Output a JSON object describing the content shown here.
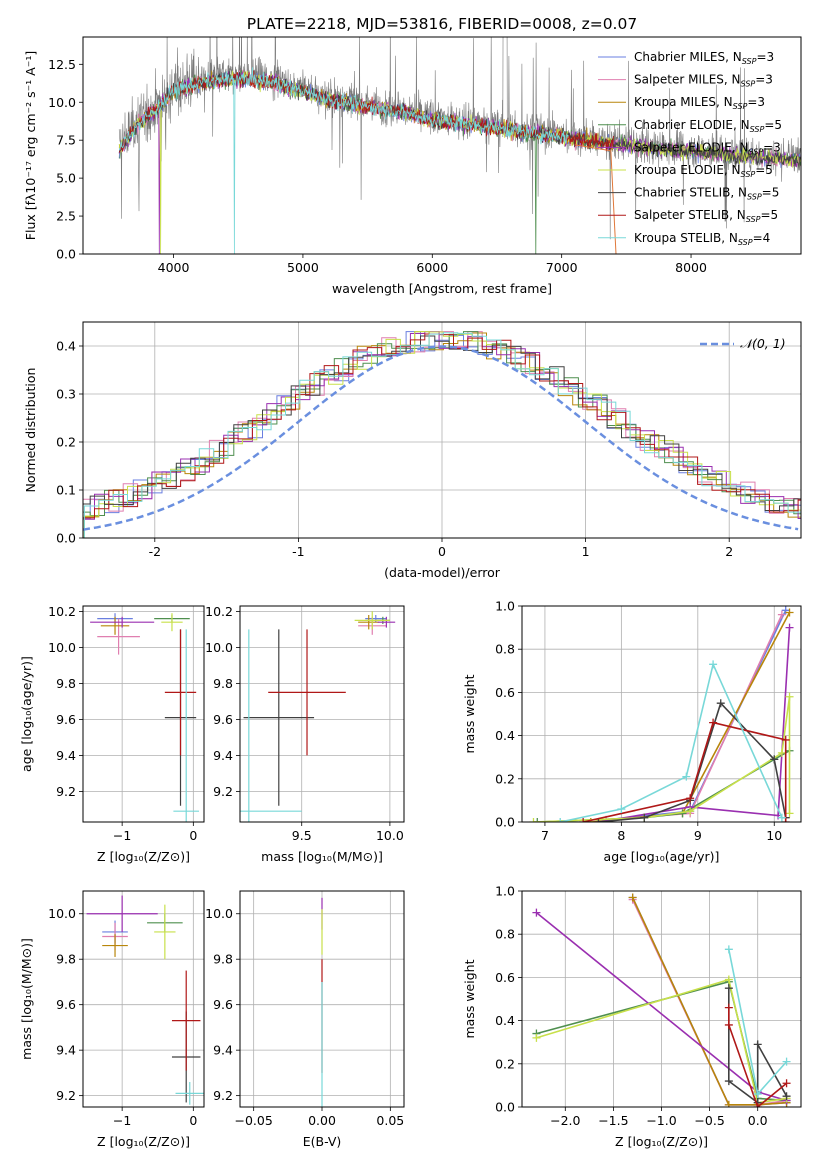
{
  "figure": {
    "title": "PLATE=2218, MJD=53816, FIBERID=0008, z=0.07"
  },
  "models": [
    {
      "name": "Chabrier MILES",
      "nssp": "3",
      "color": "#6a7fe0"
    },
    {
      "name": "Salpeter MILES",
      "nssp": "3",
      "color": "#e07fb0"
    },
    {
      "name": "Kroupa MILES",
      "nssp": "3",
      "color": "#b8860b"
    },
    {
      "name": "Chabrier ELODIE",
      "nssp": "5",
      "color": "#4f8f4f"
    },
    {
      "name": "Salpeter ELODIE",
      "nssp": "3",
      "color": "#9a2fb0"
    },
    {
      "name": "Kroupa ELODIE",
      "nssp": "5",
      "color": "#c8e04a"
    },
    {
      "name": "Chabrier STELIB",
      "nssp": "5",
      "color": "#404040"
    },
    {
      "name": "Salpeter STELIB",
      "nssp": "5",
      "color": "#b01818"
    },
    {
      "name": "Kroupa STELIB",
      "nssp": "4",
      "color": "#78d8d8"
    }
  ],
  "chart_data": [
    {
      "id": "spectrum",
      "type": "line",
      "xlabel": "wavelength [Angstrom, rest frame]",
      "ylabel": "Flux [fλ10⁻¹⁷ erg cm⁻² s⁻¹ A⁻¹]",
      "xlim": [
        3300,
        8850
      ],
      "ylim": [
        0,
        14.3
      ],
      "xticks": [
        4000,
        5000,
        6000,
        7000,
        8000
      ],
      "yticks": [
        0.0,
        2.5,
        5.0,
        7.5,
        10.0,
        12.5
      ],
      "ytick_labels": [
        "0.0",
        "2.5",
        "5.0",
        "7.5",
        "10.0",
        "12.5"
      ],
      "legend": "upper-right",
      "data_range": [
        3580,
        8850
      ],
      "continuum": [
        [
          3580,
          7.0
        ],
        [
          3700,
          8.5
        ],
        [
          3900,
          10.0
        ],
        [
          4000,
          11.0
        ],
        [
          4200,
          11.5
        ],
        [
          4500,
          11.8
        ],
        [
          4800,
          11.5
        ],
        [
          5000,
          10.9
        ],
        [
          5200,
          10.4
        ],
        [
          5500,
          9.9
        ],
        [
          5800,
          9.5
        ],
        [
          6000,
          9.0
        ],
        [
          6300,
          8.7
        ],
        [
          6500,
          8.5
        ],
        [
          6700,
          8.2
        ],
        [
          7000,
          7.9
        ],
        [
          7300,
          7.5
        ],
        [
          7600,
          7.2
        ],
        [
          8000,
          6.9
        ],
        [
          8400,
          6.6
        ],
        [
          8850,
          6.3
        ]
      ]
    },
    {
      "id": "residual-histogram",
      "type": "bar",
      "xlabel": "(data-model)/error",
      "ylabel": "Normed distribution",
      "xlim": [
        -2.5,
        2.5
      ],
      "ylim": [
        0,
        0.45
      ],
      "xticks": [
        -2,
        -1,
        0,
        1,
        2
      ],
      "yticks": [
        0.0,
        0.1,
        0.2,
        0.3,
        0.4
      ],
      "ytick_labels": [
        "0.0",
        "0.1",
        "0.2",
        "0.3",
        "0.4"
      ],
      "legend_label": "𝒩(0, 1)",
      "gaussian": {
        "mu": 0,
        "sigma": 1,
        "color": "#6a8fdf"
      },
      "bin_width": 0.1
    },
    {
      "id": "age-vs-Z",
      "type": "scatter",
      "xlabel": "Z [log₁₀(Z/Z⊙)]",
      "ylabel": "age  [log₁₀(age/yr)]",
      "xlim": [
        -1.55,
        0.15
      ],
      "ylim": [
        9.03,
        10.23
      ],
      "xticks": [
        -1,
        0
      ],
      "xtick_labels": [
        "−1",
        "0"
      ],
      "yticks": [
        9.2,
        9.4,
        9.6,
        9.8,
        10.0,
        10.2
      ],
      "ytick_labels": [
        "9.2",
        "9.4",
        "9.6",
        "9.8",
        "10.0",
        "10.2"
      ],
      "points": [
        {
          "model": 0,
          "x": -1.1,
          "xerr": 0.25,
          "y": 10.16,
          "yerr": 0.03
        },
        {
          "model": 1,
          "x": -1.05,
          "xerr": 0.3,
          "y": 10.06,
          "yerr": 0.1
        },
        {
          "model": 2,
          "x": -1.1,
          "xerr": 0.2,
          "y": 10.12,
          "yerr": 0.05
        },
        {
          "model": 3,
          "x": -0.3,
          "xerr": 0.25,
          "y": 10.16,
          "yerr": 0.02
        },
        {
          "model": 4,
          "x": -1.0,
          "xerr": 0.45,
          "y": 10.14,
          "yerr": 0.03
        },
        {
          "model": 5,
          "x": -0.3,
          "xerr": 0.15,
          "y": 10.14,
          "yerr": 0.05
        },
        {
          "model": 6,
          "x": -0.18,
          "xerr": 0.22,
          "y": 9.61,
          "yerr": 0.49
        },
        {
          "model": 7,
          "x": -0.18,
          "xerr": 0.22,
          "y": 9.75,
          "yerr": 0.35
        },
        {
          "model": 8,
          "x": -0.1,
          "xerr": 0.18,
          "y": 9.09,
          "yerr": 1.01
        }
      ]
    },
    {
      "id": "age-vs-mass",
      "type": "scatter",
      "xlabel": "mass [log₁₀(M/M⊙)]",
      "ylabel": "",
      "xlim": [
        9.15,
        10.08
      ],
      "ylim": [
        9.03,
        10.23
      ],
      "xticks": [
        9.5,
        10.0
      ],
      "xtick_labels": [
        "9.5",
        "10.0"
      ],
      "yticks": [
        9.2,
        9.4,
        9.6,
        9.8,
        10.0,
        10.2
      ],
      "ytick_labels": [
        "9.2",
        "9.4",
        "9.6",
        "9.8",
        "10.0",
        "10.2"
      ],
      "points": [
        {
          "model": 0,
          "x": 9.92,
          "xerr": 0.06,
          "y": 10.16,
          "yerr": 0.02
        },
        {
          "model": 1,
          "x": 9.9,
          "xerr": 0.08,
          "y": 10.12,
          "yerr": 0.05
        },
        {
          "model": 2,
          "x": 9.88,
          "xerr": 0.06,
          "y": 10.14,
          "yerr": 0.04
        },
        {
          "model": 3,
          "x": 9.96,
          "xerr": 0.04,
          "y": 10.15,
          "yerr": 0.02
        },
        {
          "model": 4,
          "x": 9.98,
          "xerr": 0.05,
          "y": 10.14,
          "yerr": 0.03
        },
        {
          "model": 5,
          "x": 9.9,
          "xerr": 0.1,
          "y": 10.15,
          "yerr": 0.05
        },
        {
          "model": 6,
          "x": 9.37,
          "xerr": 0.2,
          "y": 9.61,
          "yerr": 0.49
        },
        {
          "model": 7,
          "x": 9.53,
          "xerr": 0.22,
          "y": 9.75,
          "yerr": 0.35
        },
        {
          "model": 8,
          "x": 9.2,
          "xerr": 0.3,
          "y": 9.09,
          "yerr": 1.01
        }
      ]
    },
    {
      "id": "weight-vs-age",
      "type": "line",
      "xlabel": "age  [log₁₀(age/yr)]",
      "ylabel": "mass weight",
      "xlim": [
        6.7,
        10.35
      ],
      "ylim": [
        0,
        1.0
      ],
      "xticks": [
        7,
        8,
        9,
        10
      ],
      "yticks": [
        0.0,
        0.2,
        0.4,
        0.6,
        0.8,
        1.0
      ],
      "ytick_labels": [
        "0.0",
        "0.2",
        "0.4",
        "0.6",
        "0.8",
        "1.0"
      ],
      "series": [
        {
          "model": 0,
          "x": [
            7.8,
            8.9,
            10.15
          ],
          "y": [
            0.01,
            0.05,
            0.98
          ]
        },
        {
          "model": 1,
          "x": [
            7.8,
            8.9,
            10.1
          ],
          "y": [
            0.01,
            0.04,
            0.96
          ]
        },
        {
          "model": 2,
          "x": [
            7.6,
            8.8,
            10.2
          ],
          "y": [
            0.0,
            0.04,
            0.97
          ]
        },
        {
          "model": 3,
          "x": [
            6.9,
            8.3,
            8.8,
            10.0,
            10.2
          ],
          "y": [
            0.0,
            0.02,
            0.04,
            0.29,
            0.33
          ]
        },
        {
          "model": 4,
          "x": [
            7.7,
            8.9,
            10.05,
            10.2
          ],
          "y": [
            0.0,
            0.07,
            0.03,
            0.9
          ]
        },
        {
          "model": 5,
          "x": [
            6.85,
            8.3,
            8.9,
            10.1,
            10.2,
            10.2
          ],
          "y": [
            0.0,
            0.02,
            0.05,
            0.32,
            0.58,
            0.04
          ]
        },
        {
          "model": 6,
          "x": [
            7.7,
            8.3,
            8.9,
            9.3,
            10.0,
            10.15
          ],
          "y": [
            0.0,
            0.02,
            0.1,
            0.55,
            0.29,
            0.02
          ]
        },
        {
          "model": 7,
          "x": [
            7.5,
            8.9,
            9.2,
            10.15,
            10.15
          ],
          "y": [
            0.0,
            0.11,
            0.46,
            0.38,
            0.0
          ]
        },
        {
          "model": 8,
          "x": [
            7.2,
            8.0,
            8.85,
            9.2,
            10.1
          ],
          "y": [
            0.0,
            0.06,
            0.21,
            0.73,
            0.02
          ]
        }
      ]
    },
    {
      "id": "mass-vs-Z",
      "type": "scatter",
      "xlabel": "Z [log₁₀(Z/Z⊙)]",
      "ylabel": "mass [log₁₀(M/M⊙)]",
      "xlim": [
        -1.55,
        0.15
      ],
      "ylim": [
        9.15,
        10.1
      ],
      "xticks": [
        -1,
        0
      ],
      "xtick_labels": [
        "−1",
        "0"
      ],
      "yticks": [
        9.2,
        9.4,
        9.6,
        9.8,
        10.0
      ],
      "ytick_labels": [
        "9.2",
        "9.4",
        "9.6",
        "9.8",
        "10.0"
      ],
      "points": [
        {
          "model": 0,
          "x": -1.1,
          "xerr": 0.18,
          "y": 9.92,
          "yerr": 0.05
        },
        {
          "model": 1,
          "x": -1.1,
          "xerr": 0.18,
          "y": 9.9,
          "yerr": 0.06
        },
        {
          "model": 2,
          "x": -1.1,
          "xerr": 0.18,
          "y": 9.86,
          "yerr": 0.05
        },
        {
          "model": 3,
          "x": -0.4,
          "xerr": 0.25,
          "y": 9.96,
          "yerr": 0.04
        },
        {
          "model": 4,
          "x": -1.0,
          "xerr": 0.5,
          "y": 10.0,
          "yerr": 0.08
        },
        {
          "model": 5,
          "x": -0.4,
          "xerr": 0.15,
          "y": 9.92,
          "yerr": 0.12
        },
        {
          "model": 6,
          "x": -0.1,
          "xerr": 0.2,
          "y": 9.37,
          "yerr": 0.2
        },
        {
          "model": 7,
          "x": -0.1,
          "xerr": 0.2,
          "y": 9.53,
          "yerr": 0.22
        },
        {
          "model": 8,
          "x": -0.05,
          "xerr": 0.2,
          "y": 9.21,
          "yerr": 0.05
        }
      ]
    },
    {
      "id": "mass-vs-ebv",
      "type": "scatter",
      "xlabel": "E(B-V)",
      "ylabel": "",
      "xlim": [
        -0.06,
        0.06
      ],
      "ylim": [
        9.15,
        10.1
      ],
      "xticks": [
        -0.05,
        0.0,
        0.05
      ],
      "xtick_labels": [
        "−0.05",
        "0.00",
        "0.05"
      ],
      "yticks": [
        9.2,
        9.4,
        9.6,
        9.8,
        10.0
      ],
      "ytick_labels": [
        "9.2",
        "9.4",
        "9.6",
        "9.8",
        "10.0"
      ],
      "points": [
        {
          "model": 4,
          "x": 0.0,
          "xerr": 0.0,
          "y": 10.0,
          "yerr": 0.07
        },
        {
          "model": 5,
          "x": 0.0,
          "xerr": 0.0,
          "y": 9.92,
          "yerr": 0.1
        },
        {
          "model": 7,
          "x": 0.0,
          "xerr": 0.0,
          "y": 9.55,
          "yerr": 0.25
        },
        {
          "model": 8,
          "x": 0.0,
          "xerr": 0.0,
          "y": 9.4,
          "yerr": 0.3
        }
      ]
    },
    {
      "id": "weight-vs-Z",
      "type": "line",
      "xlabel": "Z [log₁₀(Z/Z⊙)]",
      "ylabel": "mass weight",
      "xlim": [
        -2.45,
        0.45
      ],
      "ylim": [
        0,
        1.0
      ],
      "xticks": [
        -2.0,
        -1.5,
        -1.0,
        -0.5,
        0.0
      ],
      "xtick_labels": [
        "−2.0",
        "−1.5",
        "−1.0",
        "−0.5",
        "0.0"
      ],
      "yticks": [
        0.0,
        0.2,
        0.4,
        0.6,
        0.8,
        1.0
      ],
      "ytick_labels": [
        "0.0",
        "0.2",
        "0.4",
        "0.6",
        "0.8",
        "1.0"
      ],
      "series": [
        {
          "model": 0,
          "x": [
            -1.3,
            -0.3,
            0.0,
            0.3
          ],
          "y": [
            0.97,
            0.01,
            0.01,
            0.02
          ]
        },
        {
          "model": 1,
          "x": [
            -1.3,
            -0.3,
            0.0,
            0.3
          ],
          "y": [
            0.96,
            0.01,
            0.01,
            0.03
          ]
        },
        {
          "model": 2,
          "x": [
            -1.3,
            -0.3,
            0.0,
            0.3
          ],
          "y": [
            0.97,
            0.01,
            0.01,
            0.02
          ]
        },
        {
          "model": 3,
          "x": [
            -2.3,
            -0.3,
            0.0,
            0.3
          ],
          "y": [
            0.34,
            0.58,
            0.04,
            0.03
          ]
        },
        {
          "model": 4,
          "x": [
            -2.3,
            0.0,
            0.3
          ],
          "y": [
            0.9,
            0.07,
            0.03
          ]
        },
        {
          "model": 5,
          "x": [
            -2.3,
            -0.3,
            0.0,
            0.3
          ],
          "y": [
            0.32,
            0.59,
            0.02,
            0.04
          ]
        },
        {
          "model": 6,
          "x": [
            -0.3,
            -0.3,
            0.0,
            0.0,
            0.3
          ],
          "y": [
            0.55,
            0.12,
            0.02,
            0.29,
            0.05
          ]
        },
        {
          "model": 7,
          "x": [
            -0.3,
            -0.3,
            0.0,
            0.3
          ],
          "y": [
            0.46,
            0.38,
            0.0,
            0.11
          ]
        },
        {
          "model": 8,
          "x": [
            -0.3,
            0.0,
            0.3
          ],
          "y": [
            0.73,
            0.06,
            0.21
          ]
        }
      ]
    }
  ]
}
